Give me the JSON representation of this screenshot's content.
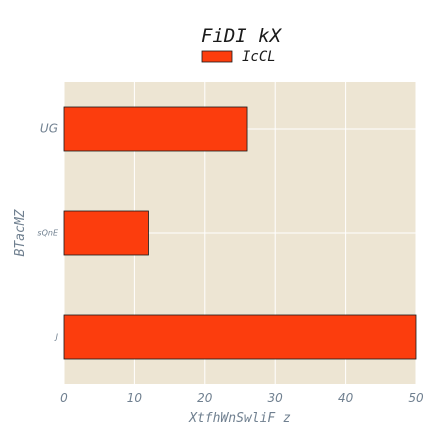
{
  "chart_data": {
    "type": "bar",
    "orientation": "horizontal",
    "title": "FiDI kX",
    "xlabel": "XtfhWnSwliF z",
    "ylabel": "BTacMZ",
    "categories": [
      "UG",
      "sQnE",
      "J"
    ],
    "series": [
      {
        "name": "IcCL",
        "values": [
          26,
          12,
          50
        ]
      }
    ],
    "xlim": [
      0,
      50
    ],
    "xticks": [
      0,
      10,
      20,
      30,
      40,
      50
    ],
    "grid": true,
    "legend": "top-center",
    "colors": {
      "bar": "#fc3d0d",
      "bar_edge": "#1a1a1a",
      "plot_background": "#ede5d3",
      "grid": "#ffffff",
      "text": "#708090"
    }
  }
}
